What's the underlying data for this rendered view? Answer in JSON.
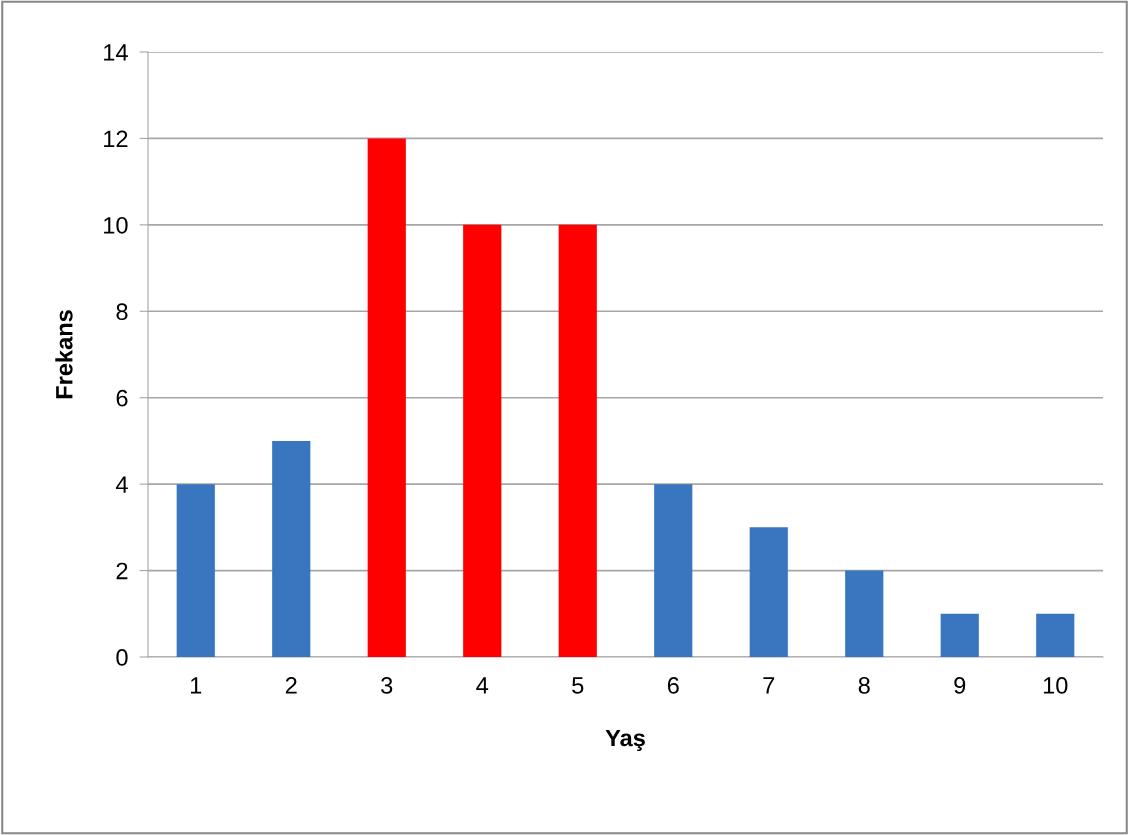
{
  "chart_data": {
    "type": "bar",
    "xlabel": "Yaş",
    "ylabel": "Frekans",
    "categories": [
      "1",
      "2",
      "3",
      "4",
      "5",
      "6",
      "7",
      "8",
      "9",
      "10"
    ],
    "values": [
      4,
      5,
      12,
      10,
      10,
      4,
      3,
      2,
      1,
      1
    ],
    "colors": [
      "#3a75bf",
      "#3a75bf",
      "#ff0000",
      "#ff0000",
      "#ff0000",
      "#3a75bf",
      "#3a75bf",
      "#3a75bf",
      "#3a75bf",
      "#3a75bf"
    ],
    "ylim": [
      0,
      14
    ],
    "yticks": [
      0,
      2,
      4,
      6,
      8,
      10,
      12,
      14
    ],
    "grid": "y"
  }
}
